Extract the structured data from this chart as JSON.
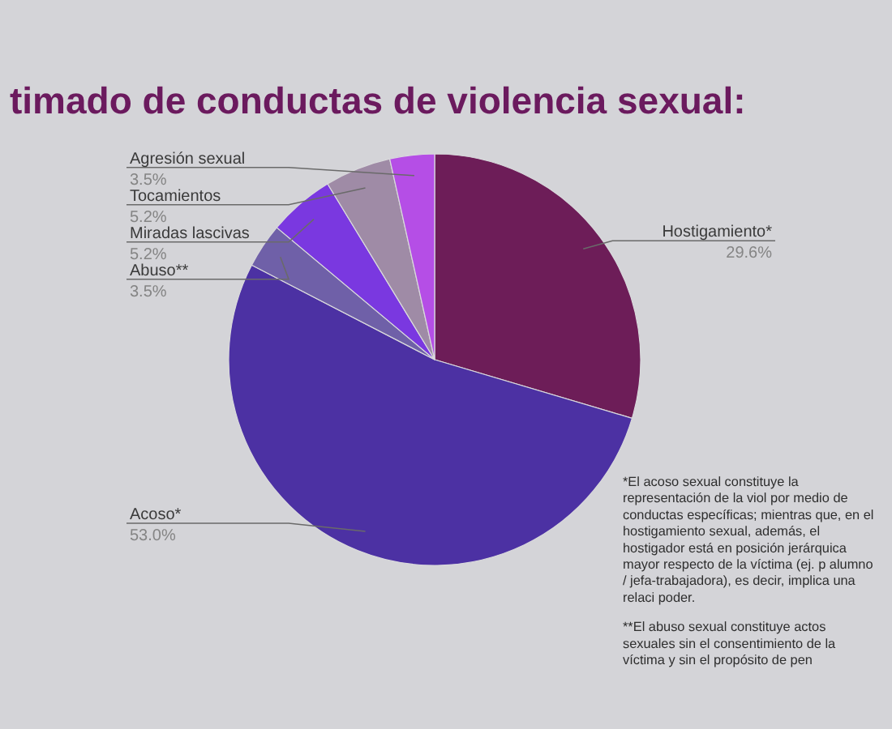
{
  "chart_data": {
    "type": "pie",
    "title": "timado de conductas de violencia sexual:",
    "categories": [
      "Hostigamiento*",
      "Acoso*",
      "Abuso**",
      "Miradas lascivas",
      "Tocamientos",
      "Agresión sexual"
    ],
    "values": [
      29.6,
      53.0,
      3.5,
      5.2,
      5.2,
      3.5
    ],
    "colors": [
      "#6d1d58",
      "#4c31a3",
      "#6f60a8",
      "#7a38e0",
      "#9f8ba6",
      "#b54ee6"
    ],
    "value_labels": [
      "29.6%",
      "53.0%",
      "3.5%",
      "5.2%",
      "5.2%",
      "3.5%"
    ],
    "annotations": [
      "*El acoso sexual constituye la representación de la viol por medio de conductas específicas; mientras que, en el hostigamiento sexual, además, el hostigador está en posición jerárquica mayor respecto de la víctima (ej. p alumno / jefa-trabajadora), es decir, implica una relaci poder.",
      "**El abuso sexual constituye actos sexuales sin el consentimiento de la víctima y sin el propósito de pen"
    ]
  }
}
